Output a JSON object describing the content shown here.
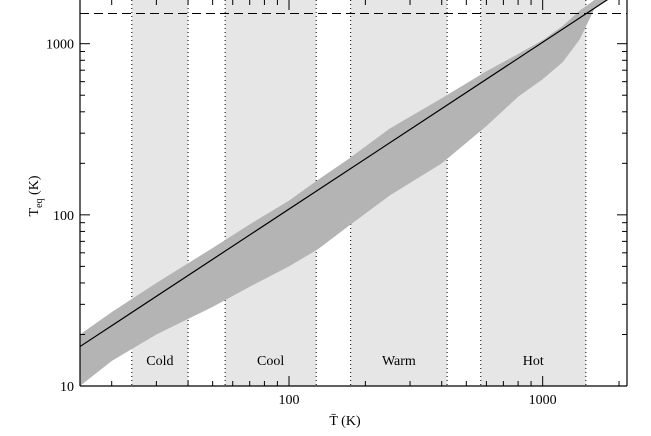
{
  "chart_data": {
    "type": "line",
    "title": "",
    "xlabel": "T̄ (K)",
    "ylabel": "T_eq (K)",
    "ylabel_main": "T",
    "ylabel_sub": "eq",
    "ylabel_unit": " (K)",
    "x_scale": "log",
    "y_scale": "log",
    "xlim": [
      15,
      2150
    ],
    "ylim": [
      10,
      1800
    ],
    "x_ticks": [
      {
        "value": 100,
        "label": "100"
      },
      {
        "value": 1000,
        "label": "1000"
      }
    ],
    "y_ticks": [
      {
        "value": 10,
        "label": "10"
      },
      {
        "value": 100,
        "label": "100"
      },
      {
        "value": 1000,
        "label": "1000"
      }
    ],
    "regions": [
      {
        "label": "Cold",
        "x_range": [
          24,
          40
        ]
      },
      {
        "label": "Cool",
        "x_range": [
          56,
          128
        ]
      },
      {
        "label": "Warm",
        "x_range": [
          175,
          420
        ]
      },
      {
        "label": "Hot",
        "x_range": [
          570,
          1480
        ]
      }
    ],
    "series": [
      {
        "type": "line",
        "x": [
          15,
          2150
        ],
        "y": [
          17,
          2150
        ]
      },
      {
        "type": "band",
        "x": [
          15,
          20,
          30,
          50,
          70,
          100,
          130,
          170,
          250,
          400,
          600,
          800,
          1000,
          1200,
          1400,
          1600,
          1800
        ],
        "upper": [
          20,
          27,
          40,
          64,
          88,
          121,
          160,
          210,
          320,
          480,
          690,
          870,
          1050,
          1270,
          1560,
          1800,
          1800
        ],
        "lower": [
          10,
          14,
          20,
          29,
          38,
          50,
          63,
          85,
          130,
          200,
          330,
          490,
          620,
          780,
          1060,
          1600,
          1800
        ]
      }
    ],
    "hline": {
      "y": 1500
    },
    "grid": false,
    "colors": {
      "band": "#b4b4b4",
      "region": "#e6e6e6",
      "line": "#000000"
    }
  }
}
